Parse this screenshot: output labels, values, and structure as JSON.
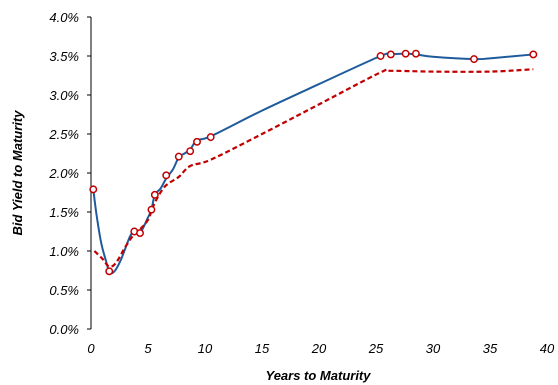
{
  "chart_data": {
    "type": "line",
    "xlabel": "Years to Maturity",
    "ylabel": "Bid Yield to Maturity",
    "xlim": [
      0,
      40
    ],
    "ylim": [
      0.0,
      4.0
    ],
    "xticks": [
      {
        "value": 0,
        "label": "0"
      },
      {
        "value": 5,
        "label": "5"
      },
      {
        "value": 10,
        "label": "10"
      },
      {
        "value": 15,
        "label": "15"
      },
      {
        "value": 20,
        "label": "20"
      },
      {
        "value": 25,
        "label": "25"
      },
      {
        "value": 30,
        "label": "30"
      },
      {
        "value": 35,
        "label": "35"
      },
      {
        "value": 40,
        "label": "40"
      }
    ],
    "yticks": [
      {
        "value": 0.0,
        "label": "0.0%"
      },
      {
        "value": 0.5,
        "label": "0.5%"
      },
      {
        "value": 1.0,
        "label": "1.0%"
      },
      {
        "value": 1.5,
        "label": "1.5%"
      },
      {
        "value": 2.0,
        "label": "2.0%"
      },
      {
        "value": 2.5,
        "label": "2.5%"
      },
      {
        "value": 3.0,
        "label": "3.0%"
      },
      {
        "value": 3.5,
        "label": "3.5%"
      },
      {
        "value": 4.0,
        "label": "4.0%"
      }
    ],
    "grid": false,
    "series": [
      {
        "style": "solid-line",
        "color": "#1f5b9c",
        "x": [
          0.2,
          0.5,
          0.9,
          1.3,
          1.6,
          2.0,
          2.6,
          3.4,
          3.8,
          4.3,
          5.0,
          5.3,
          5.6,
          6.1,
          6.6,
          7.2,
          7.7,
          8.2,
          8.7,
          9.3,
          10.5,
          15.0,
          20.0,
          25.4,
          26.3,
          27.6,
          28.5,
          30.0,
          33.6,
          35.0,
          38.8
        ],
        "y": [
          1.79,
          1.45,
          1.1,
          0.88,
          0.74,
          0.73,
          0.88,
          1.18,
          1.25,
          1.23,
          1.43,
          1.53,
          1.72,
          1.8,
          1.93,
          2.05,
          2.2,
          2.25,
          2.3,
          2.42,
          2.47,
          2.8,
          3.14,
          3.5,
          3.52,
          3.53,
          3.52,
          3.49,
          3.46,
          3.47,
          3.52
        ]
      },
      {
        "style": "dashed-line",
        "color": "#c00000",
        "x": [
          0.3,
          1.0,
          1.6,
          2.2,
          3.0,
          3.8,
          4.3,
          5.0,
          5.6,
          6.5,
          7.7,
          8.7,
          10.5,
          15.0,
          20.0,
          25.4,
          26.3,
          30.0,
          35.0,
          38.8
        ],
        "y": [
          1.0,
          0.9,
          0.8,
          0.85,
          1.05,
          1.22,
          1.28,
          1.4,
          1.62,
          1.83,
          1.95,
          2.09,
          2.17,
          2.5,
          2.88,
          3.29,
          3.31,
          3.3,
          3.3,
          3.33
        ]
      },
      {
        "style": "markers",
        "color": "#c00000",
        "fill": "#ffffff",
        "x": [
          0.2,
          1.6,
          3.8,
          4.3,
          5.3,
          5.6,
          6.6,
          7.7,
          8.7,
          9.3,
          10.5,
          25.4,
          26.3,
          27.6,
          28.5,
          33.6,
          38.8
        ],
        "y": [
          1.79,
          0.74,
          1.25,
          1.23,
          1.53,
          1.72,
          1.97,
          2.21,
          2.28,
          2.4,
          2.46,
          3.5,
          3.52,
          3.53,
          3.53,
          3.46,
          3.52
        ]
      }
    ]
  }
}
